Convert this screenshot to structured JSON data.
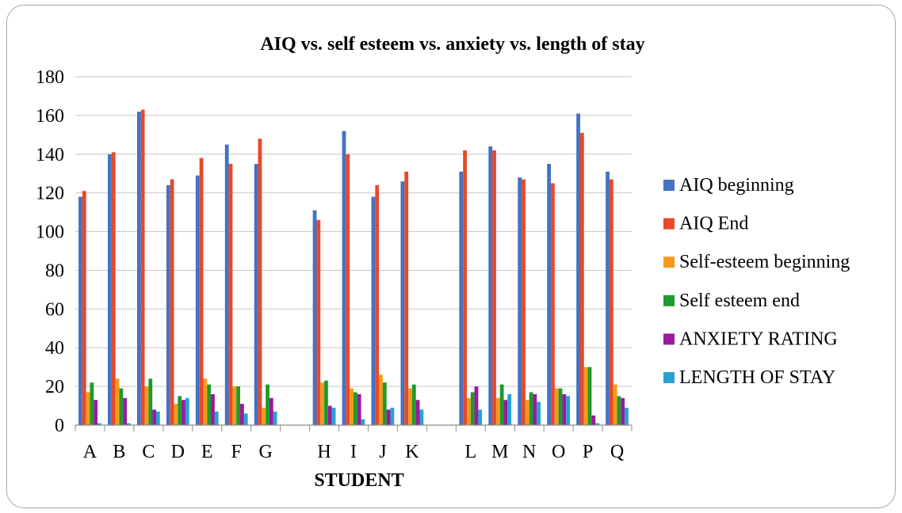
{
  "chart_data": {
    "type": "bar",
    "title": "AIQ vs. self esteem vs. anxiety vs. length of stay",
    "xlabel": "STUDENT",
    "ylabel": "",
    "ylim": [
      0,
      180
    ],
    "yticks": [
      0,
      20,
      40,
      60,
      80,
      100,
      120,
      140,
      160,
      180
    ],
    "grid": true,
    "legend_position": "right",
    "categories": [
      "A",
      "B",
      "C",
      "D",
      "E",
      "F",
      "G",
      "",
      "H",
      "I",
      "J",
      "K",
      "",
      "L",
      "M",
      "N",
      "O",
      "P",
      "Q"
    ],
    "series": [
      {
        "name": "AIQ beginning",
        "color": "#4472C4",
        "values": [
          118,
          140,
          162,
          124,
          129,
          145,
          135,
          null,
          111,
          152,
          118,
          126,
          null,
          131,
          144,
          128,
          135,
          161,
          131
        ]
      },
      {
        "name": "AIQ End",
        "color": "#E8492A",
        "values": [
          121,
          141,
          163,
          127,
          138,
          135,
          148,
          null,
          106,
          140,
          124,
          131,
          null,
          142,
          142,
          127,
          125,
          151,
          127
        ]
      },
      {
        "name": "Self-esteem beginning",
        "color": "#F59A1A",
        "values": [
          17,
          24,
          20,
          11,
          24,
          20,
          9,
          null,
          22,
          19,
          26,
          19,
          null,
          14,
          14,
          13,
          19,
          30,
          21
        ]
      },
      {
        "name": "Self esteem end",
        "color": "#1E9A2E",
        "values": [
          22,
          19,
          24,
          15,
          21,
          20,
          21,
          null,
          23,
          17,
          22,
          21,
          null,
          17,
          21,
          17,
          19,
          30,
          15
        ]
      },
      {
        "name": "ANXIETY RATING",
        "color": "#9A1AA0",
        "values": [
          13,
          14,
          8,
          13,
          16,
          11,
          14,
          null,
          10,
          16,
          8,
          13,
          null,
          20,
          13,
          16,
          16,
          5,
          14
        ]
      },
      {
        "name": "LENGTH OF STAY",
        "color": "#27A3D3",
        "values": [
          1,
          1,
          7,
          14,
          7,
          6,
          7,
          null,
          9,
          3,
          9,
          8,
          null,
          8,
          16,
          12,
          15,
          1,
          9
        ]
      }
    ]
  }
}
